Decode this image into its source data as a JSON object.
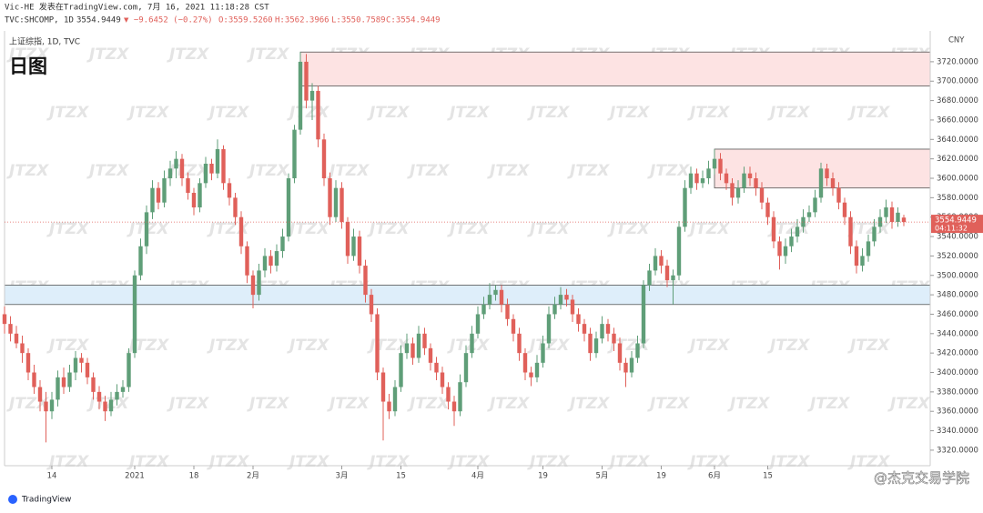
{
  "header": {
    "line1": "Vic-HE 发表在TradingView.com, 7月 16, 2021 11:18:28 CST",
    "symbol": "TVC:SHCOMP, 1D",
    "price": "3554.9449",
    "change": "▼ −9.6452 (−0.27%)",
    "o": "O:3559.5260",
    "h": "H:3562.3966",
    "l": "L:3550.7589",
    "c": "C:3554.9449"
  },
  "legend": {
    "instrument": "上证综指, 1D, TVC",
    "caption": "日图"
  },
  "footer": {
    "brand": "TradingView",
    "credit": "@杰克交易学院"
  },
  "chart_data": {
    "type": "candlestick",
    "currency": "CNY",
    "watermark": "JTZX",
    "colors": {
      "up": "#5f9e78",
      "down": "#e0605a"
    },
    "last_price_label": "3554.9449",
    "countdown": "04:11:32",
    "ylim": [
      3304,
      3748
    ],
    "yticks": [
      {
        "value": 3320,
        "label": "3320.0000"
      },
      {
        "value": 3340,
        "label": "3340.0000"
      },
      {
        "value": 3360,
        "label": "3360.0000"
      },
      {
        "value": 3380,
        "label": "3380.0000"
      },
      {
        "value": 3400,
        "label": "3400.0000"
      },
      {
        "value": 3420,
        "label": "3420.0000"
      },
      {
        "value": 3440,
        "label": "3440.0000"
      },
      {
        "value": 3460,
        "label": "3460.0000"
      },
      {
        "value": 3480,
        "label": "3480.0000"
      },
      {
        "value": 3500,
        "label": "3500.0000"
      },
      {
        "value": 3520,
        "label": "3520.0000"
      },
      {
        "value": 3540,
        "label": "3540.0000"
      },
      {
        "value": 3560,
        "label": "3560.0000"
      },
      {
        "value": 3580,
        "label": "3580.0000"
      },
      {
        "value": 3600,
        "label": "3600.0000"
      },
      {
        "value": 3620,
        "label": "3620.0000"
      },
      {
        "value": 3640,
        "label": "3640.0000"
      },
      {
        "value": 3660,
        "label": "3660.0000"
      },
      {
        "value": 3680,
        "label": "3680.0000"
      },
      {
        "value": 3700,
        "label": "3700.0000"
      },
      {
        "value": 3720,
        "label": "3720.0000"
      }
    ],
    "xticks": [
      {
        "value": 8,
        "label": "14"
      },
      {
        "value": 22,
        "label": "2021"
      },
      {
        "value": 32,
        "label": "18"
      },
      {
        "value": 42,
        "label": "2月"
      },
      {
        "value": 57,
        "label": "3月"
      },
      {
        "value": 67,
        "label": "15"
      },
      {
        "value": 80,
        "label": "4月"
      },
      {
        "value": 91,
        "label": "19"
      },
      {
        "value": 101,
        "label": "5月"
      },
      {
        "value": 111,
        "label": "19"
      },
      {
        "value": 120,
        "label": "6月"
      },
      {
        "value": 129,
        "label": "15"
      }
    ],
    "zones": [
      {
        "start": 50,
        "low": 3695,
        "high": 3730,
        "color": "#fde3e3"
      },
      {
        "start": 120,
        "low": 3590,
        "high": 3630,
        "color": "#fde3e3"
      },
      {
        "start": 0,
        "low": 3470,
        "high": 3490,
        "color": "#deeefa"
      }
    ],
    "ohlc": [
      [
        3460,
        3468,
        3440,
        3450
      ],
      [
        3450,
        3458,
        3432,
        3440
      ],
      [
        3440,
        3448,
        3425,
        3430
      ],
      [
        3430,
        3438,
        3410,
        3420
      ],
      [
        3420,
        3425,
        3392,
        3400
      ],
      [
        3400,
        3408,
        3378,
        3385
      ],
      [
        3385,
        3392,
        3360,
        3370
      ],
      [
        3370,
        3380,
        3328,
        3360
      ],
      [
        3360,
        3380,
        3352,
        3372
      ],
      [
        3372,
        3402,
        3365,
        3395
      ],
      [
        3395,
        3405,
        3378,
        3385
      ],
      [
        3385,
        3408,
        3380,
        3400
      ],
      [
        3400,
        3422,
        3392,
        3415
      ],
      [
        3415,
        3420,
        3400,
        3410
      ],
      [
        3410,
        3415,
        3388,
        3395
      ],
      [
        3395,
        3400,
        3372,
        3380
      ],
      [
        3380,
        3386,
        3362,
        3370
      ],
      [
        3370,
        3376,
        3350,
        3360
      ],
      [
        3360,
        3380,
        3355,
        3372
      ],
      [
        3372,
        3388,
        3366,
        3380
      ],
      [
        3380,
        3392,
        3374,
        3385
      ],
      [
        3385,
        3425,
        3380,
        3420
      ],
      [
        3420,
        3505,
        3415,
        3500
      ],
      [
        3500,
        3538,
        3495,
        3530
      ],
      [
        3530,
        3572,
        3522,
        3565
      ],
      [
        3565,
        3598,
        3558,
        3590
      ],
      [
        3590,
        3596,
        3568,
        3575
      ],
      [
        3575,
        3608,
        3570,
        3600
      ],
      [
        3600,
        3618,
        3592,
        3610
      ],
      [
        3610,
        3628,
        3600,
        3620
      ],
      [
        3620,
        3625,
        3592,
        3600
      ],
      [
        3600,
        3606,
        3578,
        3585
      ],
      [
        3585,
        3590,
        3562,
        3570
      ],
      [
        3570,
        3600,
        3565,
        3595
      ],
      [
        3595,
        3622,
        3590,
        3615
      ],
      [
        3615,
        3620,
        3598,
        3605
      ],
      [
        3605,
        3640,
        3600,
        3630
      ],
      [
        3630,
        3634,
        3588,
        3595
      ],
      [
        3595,
        3600,
        3572,
        3580
      ],
      [
        3580,
        3585,
        3552,
        3560
      ],
      [
        3560,
        3566,
        3522,
        3530
      ],
      [
        3530,
        3535,
        3492,
        3500
      ],
      [
        3500,
        3505,
        3466,
        3480
      ],
      [
        3480,
        3512,
        3474,
        3505
      ],
      [
        3505,
        3528,
        3498,
        3520
      ],
      [
        3520,
        3526,
        3502,
        3510
      ],
      [
        3510,
        3532,
        3504,
        3525
      ],
      [
        3525,
        3548,
        3518,
        3540
      ],
      [
        3540,
        3605,
        3535,
        3600
      ],
      [
        3600,
        3655,
        3595,
        3650
      ],
      [
        3650,
        3730,
        3645,
        3720
      ],
      [
        3720,
        3728,
        3672,
        3680
      ],
      [
        3680,
        3698,
        3660,
        3690
      ],
      [
        3690,
        3695,
        3632,
        3640
      ],
      [
        3640,
        3646,
        3592,
        3600
      ],
      [
        3600,
        3606,
        3552,
        3560
      ],
      [
        3560,
        3598,
        3555,
        3590
      ],
      [
        3590,
        3596,
        3548,
        3555
      ],
      [
        3555,
        3560,
        3512,
        3520
      ],
      [
        3520,
        3548,
        3515,
        3540
      ],
      [
        3540,
        3546,
        3502,
        3510
      ],
      [
        3510,
        3516,
        3472,
        3480
      ],
      [
        3480,
        3486,
        3452,
        3460
      ],
      [
        3460,
        3466,
        3392,
        3400
      ],
      [
        3400,
        3405,
        3330,
        3370
      ],
      [
        3370,
        3378,
        3352,
        3360
      ],
      [
        3360,
        3392,
        3355,
        3385
      ],
      [
        3385,
        3428,
        3380,
        3420
      ],
      [
        3420,
        3440,
        3414,
        3430
      ],
      [
        3430,
        3436,
        3408,
        3415
      ],
      [
        3415,
        3448,
        3410,
        3440
      ],
      [
        3440,
        3446,
        3418,
        3425
      ],
      [
        3425,
        3430,
        3402,
        3410
      ],
      [
        3410,
        3416,
        3392,
        3400
      ],
      [
        3400,
        3406,
        3378,
        3385
      ],
      [
        3385,
        3390,
        3362,
        3370
      ],
      [
        3370,
        3376,
        3345,
        3360
      ],
      [
        3360,
        3398,
        3355,
        3390
      ],
      [
        3390,
        3428,
        3385,
        3420
      ],
      [
        3420,
        3448,
        3415,
        3440
      ],
      [
        3440,
        3468,
        3435,
        3460
      ],
      [
        3460,
        3478,
        3455,
        3470
      ],
      [
        3470,
        3492,
        3465,
        3480
      ],
      [
        3480,
        3490,
        3474,
        3485
      ],
      [
        3485,
        3490,
        3462,
        3470
      ],
      [
        3470,
        3476,
        3448,
        3455
      ],
      [
        3455,
        3460,
        3432,
        3440
      ],
      [
        3440,
        3446,
        3412,
        3420
      ],
      [
        3420,
        3425,
        3392,
        3400
      ],
      [
        3400,
        3406,
        3386,
        3395
      ],
      [
        3395,
        3418,
        3390,
        3410
      ],
      [
        3410,
        3438,
        3405,
        3430
      ],
      [
        3430,
        3468,
        3425,
        3460
      ],
      [
        3460,
        3478,
        3455,
        3470
      ],
      [
        3470,
        3488,
        3465,
        3480
      ],
      [
        3480,
        3486,
        3468,
        3475
      ],
      [
        3475,
        3480,
        3452,
        3460
      ],
      [
        3460,
        3466,
        3442,
        3450
      ],
      [
        3450,
        3455,
        3432,
        3440
      ],
      [
        3440,
        3446,
        3412,
        3420
      ],
      [
        3420,
        3442,
        3415,
        3435
      ],
      [
        3435,
        3458,
        3430,
        3450
      ],
      [
        3450,
        3455,
        3432,
        3440
      ],
      [
        3440,
        3446,
        3422,
        3430
      ],
      [
        3430,
        3436,
        3402,
        3410
      ],
      [
        3410,
        3415,
        3385,
        3400
      ],
      [
        3400,
        3422,
        3395,
        3415
      ],
      [
        3415,
        3438,
        3410,
        3430
      ],
      [
        3430,
        3495,
        3425,
        3490
      ],
      [
        3490,
        3512,
        3484,
        3505
      ],
      [
        3505,
        3528,
        3500,
        3520
      ],
      [
        3520,
        3526,
        3502,
        3510
      ],
      [
        3510,
        3516,
        3488,
        3495
      ],
      [
        3495,
        3506,
        3470,
        3500
      ],
      [
        3500,
        3556,
        3495,
        3550
      ],
      [
        3550,
        3598,
        3545,
        3590
      ],
      [
        3590,
        3612,
        3584,
        3605
      ],
      [
        3605,
        3610,
        3588,
        3595
      ],
      [
        3595,
        3608,
        3590,
        3600
      ],
      [
        3600,
        3618,
        3594,
        3610
      ],
      [
        3610,
        3630,
        3604,
        3620
      ],
      [
        3620,
        3626,
        3598,
        3605
      ],
      [
        3605,
        3610,
        3588,
        3595
      ],
      [
        3595,
        3600,
        3572,
        3580
      ],
      [
        3580,
        3598,
        3574,
        3590
      ],
      [
        3590,
        3612,
        3585,
        3605
      ],
      [
        3605,
        3612,
        3592,
        3600
      ],
      [
        3600,
        3606,
        3582,
        3590
      ],
      [
        3590,
        3596,
        3568,
        3575
      ],
      [
        3575,
        3580,
        3552,
        3560
      ],
      [
        3560,
        3566,
        3528,
        3535
      ],
      [
        3535,
        3540,
        3506,
        3520
      ],
      [
        3520,
        3538,
        3512,
        3530
      ],
      [
        3530,
        3548,
        3524,
        3540
      ],
      [
        3540,
        3558,
        3534,
        3550
      ],
      [
        3550,
        3568,
        3544,
        3560
      ],
      [
        3560,
        3572,
        3555,
        3565
      ],
      [
        3565,
        3588,
        3560,
        3580
      ],
      [
        3580,
        3616,
        3575,
        3610
      ],
      [
        3610,
        3615,
        3592,
        3600
      ],
      [
        3600,
        3606,
        3582,
        3590
      ],
      [
        3590,
        3596,
        3568,
        3575
      ],
      [
        3575,
        3580,
        3552,
        3560
      ],
      [
        3560,
        3566,
        3522,
        3530
      ],
      [
        3530,
        3536,
        3502,
        3510
      ],
      [
        3510,
        3528,
        3504,
        3520
      ],
      [
        3520,
        3542,
        3514,
        3535
      ],
      [
        3535,
        3558,
        3530,
        3550
      ],
      [
        3550,
        3568,
        3544,
        3560
      ],
      [
        3560,
        3578,
        3554,
        3570
      ],
      [
        3570,
        3576,
        3548,
        3555
      ],
      [
        3555,
        3570,
        3550,
        3564.5901
      ],
      [
        3559.526,
        3562.3966,
        3550.7589,
        3554.9449
      ]
    ]
  }
}
